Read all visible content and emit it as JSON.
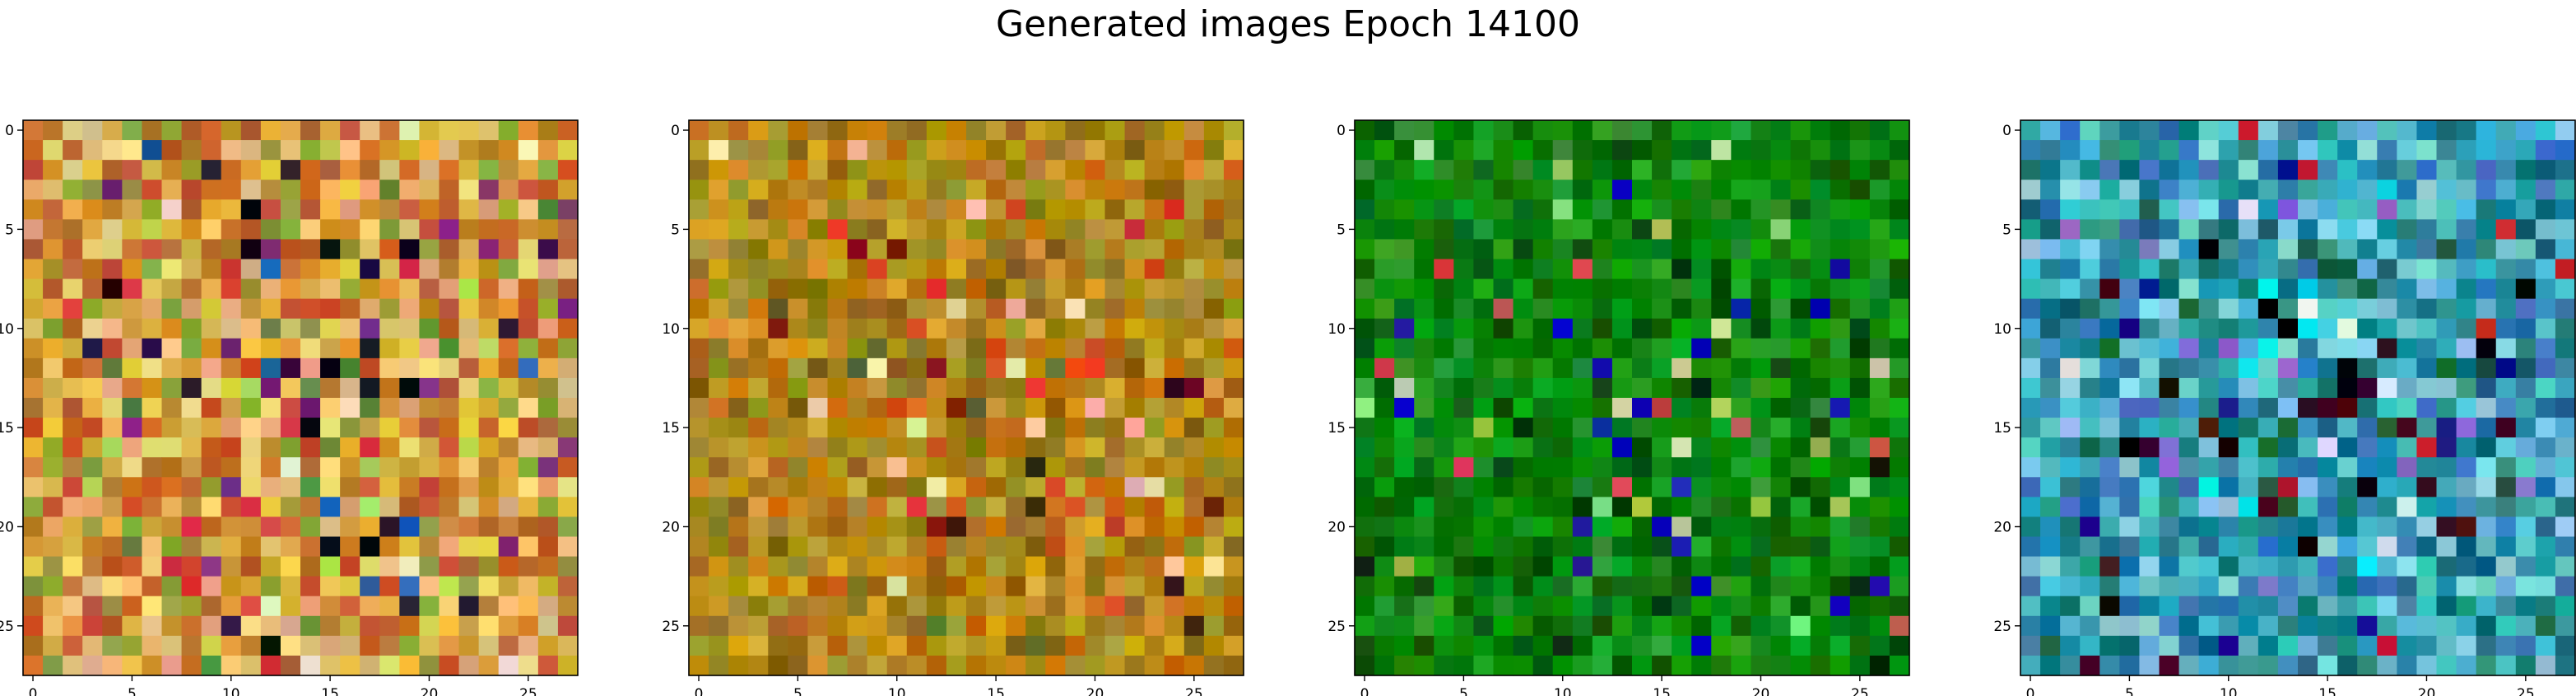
{
  "figure": {
    "title": "Generated images Epoch 14100"
  },
  "chart_data": [
    {
      "type": "heatmap",
      "grid_size": [
        28,
        28
      ],
      "xlim": [
        -0.5,
        27.5
      ],
      "ylim": [
        27.5,
        -0.5
      ],
      "xticks": [
        "0",
        "5",
        "10",
        "15",
        "20",
        "25"
      ],
      "yticks": [
        "0",
        "5",
        "10",
        "15",
        "20",
        "25"
      ],
      "palette": [
        "#d8a23a",
        "#c87f2a",
        "#e6c24a",
        "#b96a2a",
        "#8fa03a",
        "#e3b07a",
        "#f0d27a",
        "#c0562e"
      ],
      "accents": [
        "#2b0f3a",
        "#7a2a7a",
        "#d23a3a",
        "#1f5fa8",
        "#f3e5c5",
        "#5a8a3a",
        "#0f0a12",
        "#b8d85a"
      ],
      "noise_level": 0.6
    },
    {
      "type": "heatmap",
      "grid_size": [
        28,
        28
      ],
      "xlim": [
        -0.5,
        27.5
      ],
      "ylim": [
        27.5,
        -0.5
      ],
      "xticks": [
        "0",
        "5",
        "10",
        "15",
        "20",
        "25"
      ],
      "yticks": [
        "0",
        "5",
        "10",
        "15",
        "20",
        "25"
      ],
      "palette": [
        "#b8860b",
        "#a0761a",
        "#c89a1e",
        "#8a6a10",
        "#d0a030",
        "#9a8a20",
        "#c07010",
        "#b09030"
      ],
      "accents": [
        "#d23a2a",
        "#f0b8a0",
        "#3a1a0a",
        "#e8e0a0",
        "#5a6a2a",
        "#d06020",
        "#7a1a10",
        "#e04020"
      ],
      "noise_level": 0.45
    },
    {
      "type": "heatmap",
      "grid_size": [
        28,
        28
      ],
      "xlim": [
        -0.5,
        27.5
      ],
      "ylim": [
        27.5,
        -0.5
      ],
      "xticks": [
        "0",
        "5",
        "10",
        "15",
        "20",
        "25"
      ],
      "yticks": [
        "0",
        "5",
        "10",
        "15",
        "20",
        "25"
      ],
      "palette": [
        "#0a8a0a",
        "#067006",
        "#119911",
        "#045a04",
        "#18a018",
        "#0c7c14",
        "#007a00",
        "#2a9a2a"
      ],
      "accents": [
        "#001a00",
        "#1a1aa8",
        "#c0d8a0",
        "#d04a4a",
        "#7ae07a",
        "#003a00",
        "#0000c0",
        "#a0c050"
      ],
      "noise_level": 0.35
    },
    {
      "type": "heatmap",
      "grid_size": [
        28,
        28
      ],
      "xlim": [
        -0.5,
        27.5
      ],
      "ylim": [
        27.5,
        -0.5
      ],
      "xticks": [
        "0",
        "5",
        "10",
        "15",
        "20",
        "25"
      ],
      "yticks": [
        "0",
        "5",
        "10",
        "15",
        "20",
        "25"
      ],
      "palette": [
        "#2a9ab0",
        "#1a7a9a",
        "#40b8c8",
        "#0a6a7a",
        "#5ac0d0",
        "#2a8a8a",
        "#8ad0e0",
        "#3a7ab8"
      ],
      "accents": [
        "#000000",
        "#3a0a1a",
        "#c01a2a",
        "#00e0f0",
        "#0a0a8a",
        "#e0e8f0",
        "#1a5a3a",
        "#8a6ac8"
      ],
      "noise_level": 0.5
    }
  ]
}
